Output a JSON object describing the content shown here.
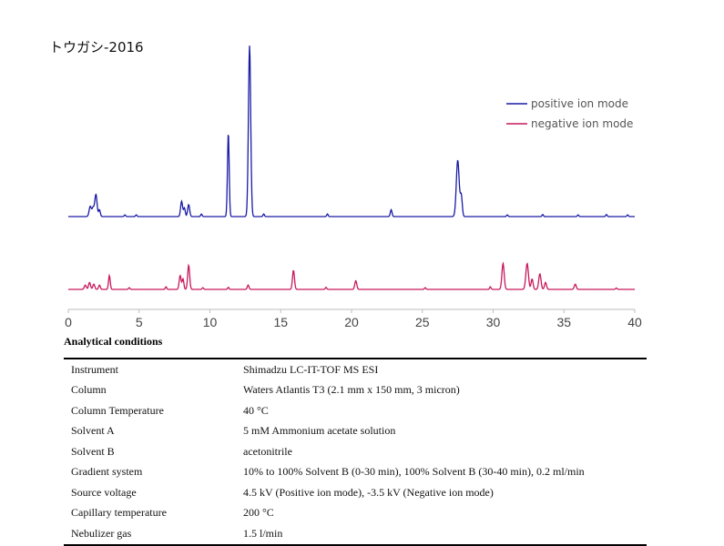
{
  "chart_data": {
    "type": "line",
    "title": "トウガシ-2016",
    "xlabel": "",
    "ylabel": "",
    "xlim": [
      0,
      40
    ],
    "x_ticks": [
      0,
      5,
      10,
      15,
      20,
      25,
      30,
      35,
      40
    ],
    "grid": false,
    "legend_position": "top-right",
    "series": [
      {
        "name": "positive ion mode",
        "color": "#1a1aa6",
        "peaks": [
          {
            "t": 1.55,
            "h": 0.06,
            "w": 0.08
          },
          {
            "t": 1.75,
            "h": 0.05,
            "w": 0.07
          },
          {
            "t": 1.95,
            "h": 0.13,
            "w": 0.08
          },
          {
            "t": 2.2,
            "h": 0.04,
            "w": 0.06
          },
          {
            "t": 4.0,
            "h": 0.01,
            "w": 0.05
          },
          {
            "t": 4.8,
            "h": 0.01,
            "w": 0.05
          },
          {
            "t": 8.0,
            "h": 0.09,
            "w": 0.07
          },
          {
            "t": 8.2,
            "h": 0.05,
            "w": 0.06
          },
          {
            "t": 8.5,
            "h": 0.07,
            "w": 0.07
          },
          {
            "t": 9.4,
            "h": 0.015,
            "w": 0.05
          },
          {
            "t": 11.3,
            "h": 0.49,
            "w": 0.06
          },
          {
            "t": 12.8,
            "h": 1.0,
            "w": 0.08
          },
          {
            "t": 13.8,
            "h": 0.015,
            "w": 0.05
          },
          {
            "t": 18.3,
            "h": 0.015,
            "w": 0.05
          },
          {
            "t": 22.8,
            "h": 0.04,
            "w": 0.06
          },
          {
            "t": 27.5,
            "h": 0.33,
            "w": 0.1
          },
          {
            "t": 27.75,
            "h": 0.12,
            "w": 0.07
          },
          {
            "t": 31.0,
            "h": 0.01,
            "w": 0.05
          },
          {
            "t": 33.5,
            "h": 0.012,
            "w": 0.05
          },
          {
            "t": 36.0,
            "h": 0.01,
            "w": 0.05
          },
          {
            "t": 38.0,
            "h": 0.012,
            "w": 0.05
          },
          {
            "t": 39.5,
            "h": 0.01,
            "w": 0.05
          }
        ]
      },
      {
        "name": "negative ion mode",
        "color": "#c8185c",
        "peaks": [
          {
            "t": 1.2,
            "h": 0.025,
            "w": 0.07
          },
          {
            "t": 1.5,
            "h": 0.04,
            "w": 0.07
          },
          {
            "t": 1.8,
            "h": 0.03,
            "w": 0.07
          },
          {
            "t": 2.2,
            "h": 0.025,
            "w": 0.06
          },
          {
            "t": 2.9,
            "h": 0.08,
            "w": 0.06
          },
          {
            "t": 4.3,
            "h": 0.01,
            "w": 0.05
          },
          {
            "t": 6.9,
            "h": 0.015,
            "w": 0.05
          },
          {
            "t": 7.9,
            "h": 0.08,
            "w": 0.07
          },
          {
            "t": 8.1,
            "h": 0.06,
            "w": 0.06
          },
          {
            "t": 8.5,
            "h": 0.14,
            "w": 0.07
          },
          {
            "t": 9.5,
            "h": 0.01,
            "w": 0.05
          },
          {
            "t": 11.3,
            "h": 0.012,
            "w": 0.05
          },
          {
            "t": 12.7,
            "h": 0.025,
            "w": 0.06
          },
          {
            "t": 15.9,
            "h": 0.11,
            "w": 0.07
          },
          {
            "t": 18.2,
            "h": 0.012,
            "w": 0.05
          },
          {
            "t": 20.3,
            "h": 0.05,
            "w": 0.07
          },
          {
            "t": 25.2,
            "h": 0.01,
            "w": 0.05
          },
          {
            "t": 29.8,
            "h": 0.015,
            "w": 0.05
          },
          {
            "t": 30.7,
            "h": 0.15,
            "w": 0.08
          },
          {
            "t": 32.4,
            "h": 0.15,
            "w": 0.09
          },
          {
            "t": 32.75,
            "h": 0.06,
            "w": 0.07
          },
          {
            "t": 33.3,
            "h": 0.09,
            "w": 0.08
          },
          {
            "t": 33.7,
            "h": 0.04,
            "w": 0.07
          },
          {
            "t": 35.8,
            "h": 0.03,
            "w": 0.07
          },
          {
            "t": 38.7,
            "h": 0.008,
            "w": 0.05
          }
        ]
      }
    ]
  },
  "conditions": {
    "heading": "Analytical conditions",
    "rows": [
      {
        "label": "Instrument",
        "value": "Shimadzu LC-IT-TOF MS ESI"
      },
      {
        "label": "Column",
        "value": "Waters Atlantis T3 (2.1 mm x 150 mm, 3 micron)"
      },
      {
        "label": "Column Temperature",
        "value": "40 °C"
      },
      {
        "label": "Solvent A",
        "value": "5 mM Ammonium acetate solution"
      },
      {
        "label": "Solvent B",
        "value": "acetonitrile"
      },
      {
        "label": "Gradient system",
        "value": "10% to 100% Solvent B (0-30 min), 100% Solvent B (30-40 min), 0.2 ml/min"
      },
      {
        "label": "Source voltage",
        "value": "4.5 kV (Positive ion mode), -3.5 kV (Negative ion mode)"
      },
      {
        "label": "Capillary temperature",
        "value": "200 °C"
      },
      {
        "label": "Nebulizer gas",
        "value": "1.5 l/min"
      }
    ]
  }
}
